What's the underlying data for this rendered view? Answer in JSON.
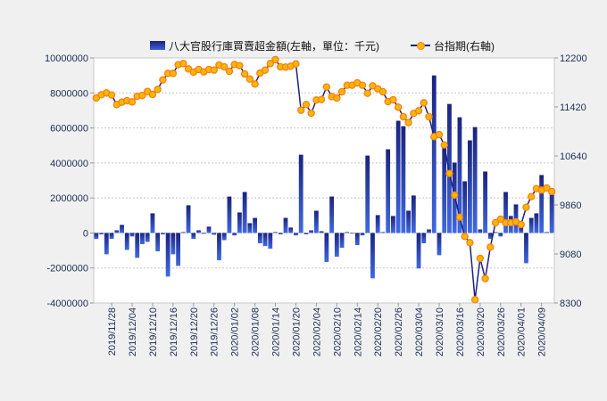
{
  "chart_data": {
    "type": "bar+line",
    "legend": [
      {
        "name": "八大官股行庫買賣超金額(左軸，單位：千元)",
        "type": "bar",
        "color": "#1a237e"
      },
      {
        "name": "台指期(右軸)",
        "type": "line",
        "color": "#1a237e",
        "marker_color": "#f5b800"
      }
    ],
    "legend_position": "top-center",
    "left_axis": {
      "ylim": [
        -4000000,
        10000000
      ],
      "ticks": [
        "10000000",
        "8000000",
        "6000000",
        "4000000",
        "2000000",
        "0",
        "-2000000",
        "-4000000"
      ]
    },
    "right_axis": {
      "ylim": [
        8300,
        12200
      ],
      "ticks": [
        "12200",
        "11420",
        "10640",
        "9860",
        "9080",
        "8300"
      ]
    },
    "x_tick_labels": [
      "2019/11/28",
      "2019/12/04",
      "2019/12/10",
      "2019/12/16",
      "2019/12/20",
      "2019/12/26",
      "2020/01/02",
      "2020/01/08",
      "2020/01/14",
      "2020/01/20",
      "2020/02/04",
      "2020/02/10",
      "2020/02/14",
      "2020/02/20",
      "2020/02/26",
      "2020/03/04",
      "2020/03/10",
      "2020/03/16",
      "2020/03/20",
      "2020/03/26",
      "2020/04/01",
      "2020/04/09"
    ],
    "x_tick_first_index": 3,
    "x_tick_every": 4,
    "grid": "horizontal dotted",
    "series": [
      {
        "name": "八大官股行庫買賣超金額",
        "axis": "left",
        "type": "bar",
        "values": [
          -340000,
          -80000,
          -1220000,
          -340000,
          150000,
          460000,
          -970000,
          -200000,
          -1420000,
          -640000,
          -510000,
          1120000,
          -1050000,
          -80000,
          -2490000,
          -1220000,
          -1880000,
          50000,
          1580000,
          -340000,
          150000,
          -50000,
          360000,
          -100000,
          -1560000,
          -410000,
          2080000,
          -140000,
          1170000,
          2340000,
          560000,
          860000,
          -590000,
          -750000,
          -900000,
          50000,
          -80000,
          860000,
          310000,
          -140000,
          4470000,
          -80000,
          150000,
          1270000,
          100000,
          -1660000,
          2080000,
          -1360000,
          -850000,
          50000,
          -30000,
          -690000,
          -140000,
          4420000,
          -2590000,
          1020000,
          50000,
          4780000,
          970000,
          6410000,
          6100000,
          1270000,
          2140000,
          -2030000,
          -590000,
          200000,
          9000000,
          -1270000,
          5000000,
          7370000,
          4020000,
          6610000,
          2950000,
          5290000,
          6050000,
          200000,
          3510000,
          -340000,
          50000,
          -200000,
          2340000,
          970000,
          1630000,
          310000,
          -1730000,
          860000,
          1120000,
          3310000,
          50000,
          2540000
        ]
      },
      {
        "name": "台指期",
        "axis": "right",
        "type": "line",
        "values": [
          11562,
          11614,
          11642,
          11609,
          11458,
          11496,
          11519,
          11500,
          11590,
          11604,
          11666,
          11619,
          11699,
          11850,
          11954,
          11954,
          12091,
          12110,
          12025,
          11973,
          12016,
          11978,
          12016,
          12006,
          12087,
          12058,
          11987,
          12096,
          12077,
          11945,
          11864,
          11784,
          11959,
          12006,
          12110,
          12172,
          12058,
          12053,
          12068,
          12105,
          11368,
          11458,
          11321,
          11529,
          11538,
          11737,
          11585,
          11562,
          11661,
          11765,
          11765,
          11803,
          11765,
          11637,
          11756,
          11708,
          11661,
          11505,
          11533,
          11415,
          11264,
          11170,
          11316,
          11359,
          11486,
          11264,
          10947,
          10980,
          10815,
          10361,
          10016,
          9666,
          9359,
          9260,
          8352,
          9009,
          8688,
          9189,
          9577,
          9634,
          9577,
          9577,
          9591,
          9548,
          9822,
          9992,
          10120,
          10096,
          10130,
          10073
        ]
      }
    ]
  }
}
